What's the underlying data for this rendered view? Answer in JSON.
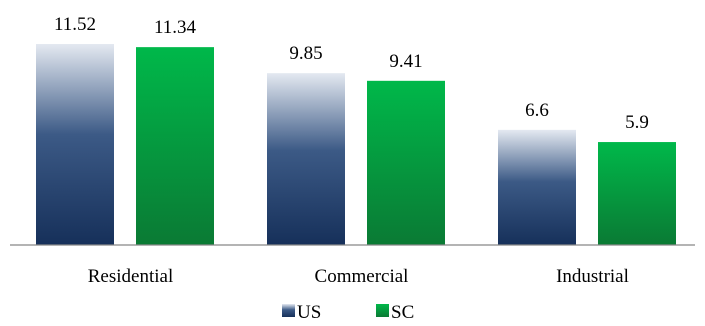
{
  "chart_data": {
    "type": "bar",
    "title": "",
    "xlabel": "",
    "ylabel": "",
    "categories": [
      "Residential",
      "Commercial",
      "Industrial"
    ],
    "series": [
      {
        "name": "US",
        "values": [
          11.52,
          9.85,
          6.6
        ],
        "color_top": "#dbe3ef",
        "color_bottom": "#16305a"
      },
      {
        "name": "SC",
        "values": [
          11.34,
          9.41,
          5.9
        ],
        "color": "#00b346",
        "color_bottom": "#0a7a34"
      }
    ],
    "value_labels": [
      [
        "11.52",
        "9.85",
        "6.6"
      ],
      [
        "11.34",
        "9.41",
        "5.9"
      ]
    ],
    "ylim": [
      0,
      11.52
    ],
    "grid": false,
    "legend_position": "bottom"
  }
}
